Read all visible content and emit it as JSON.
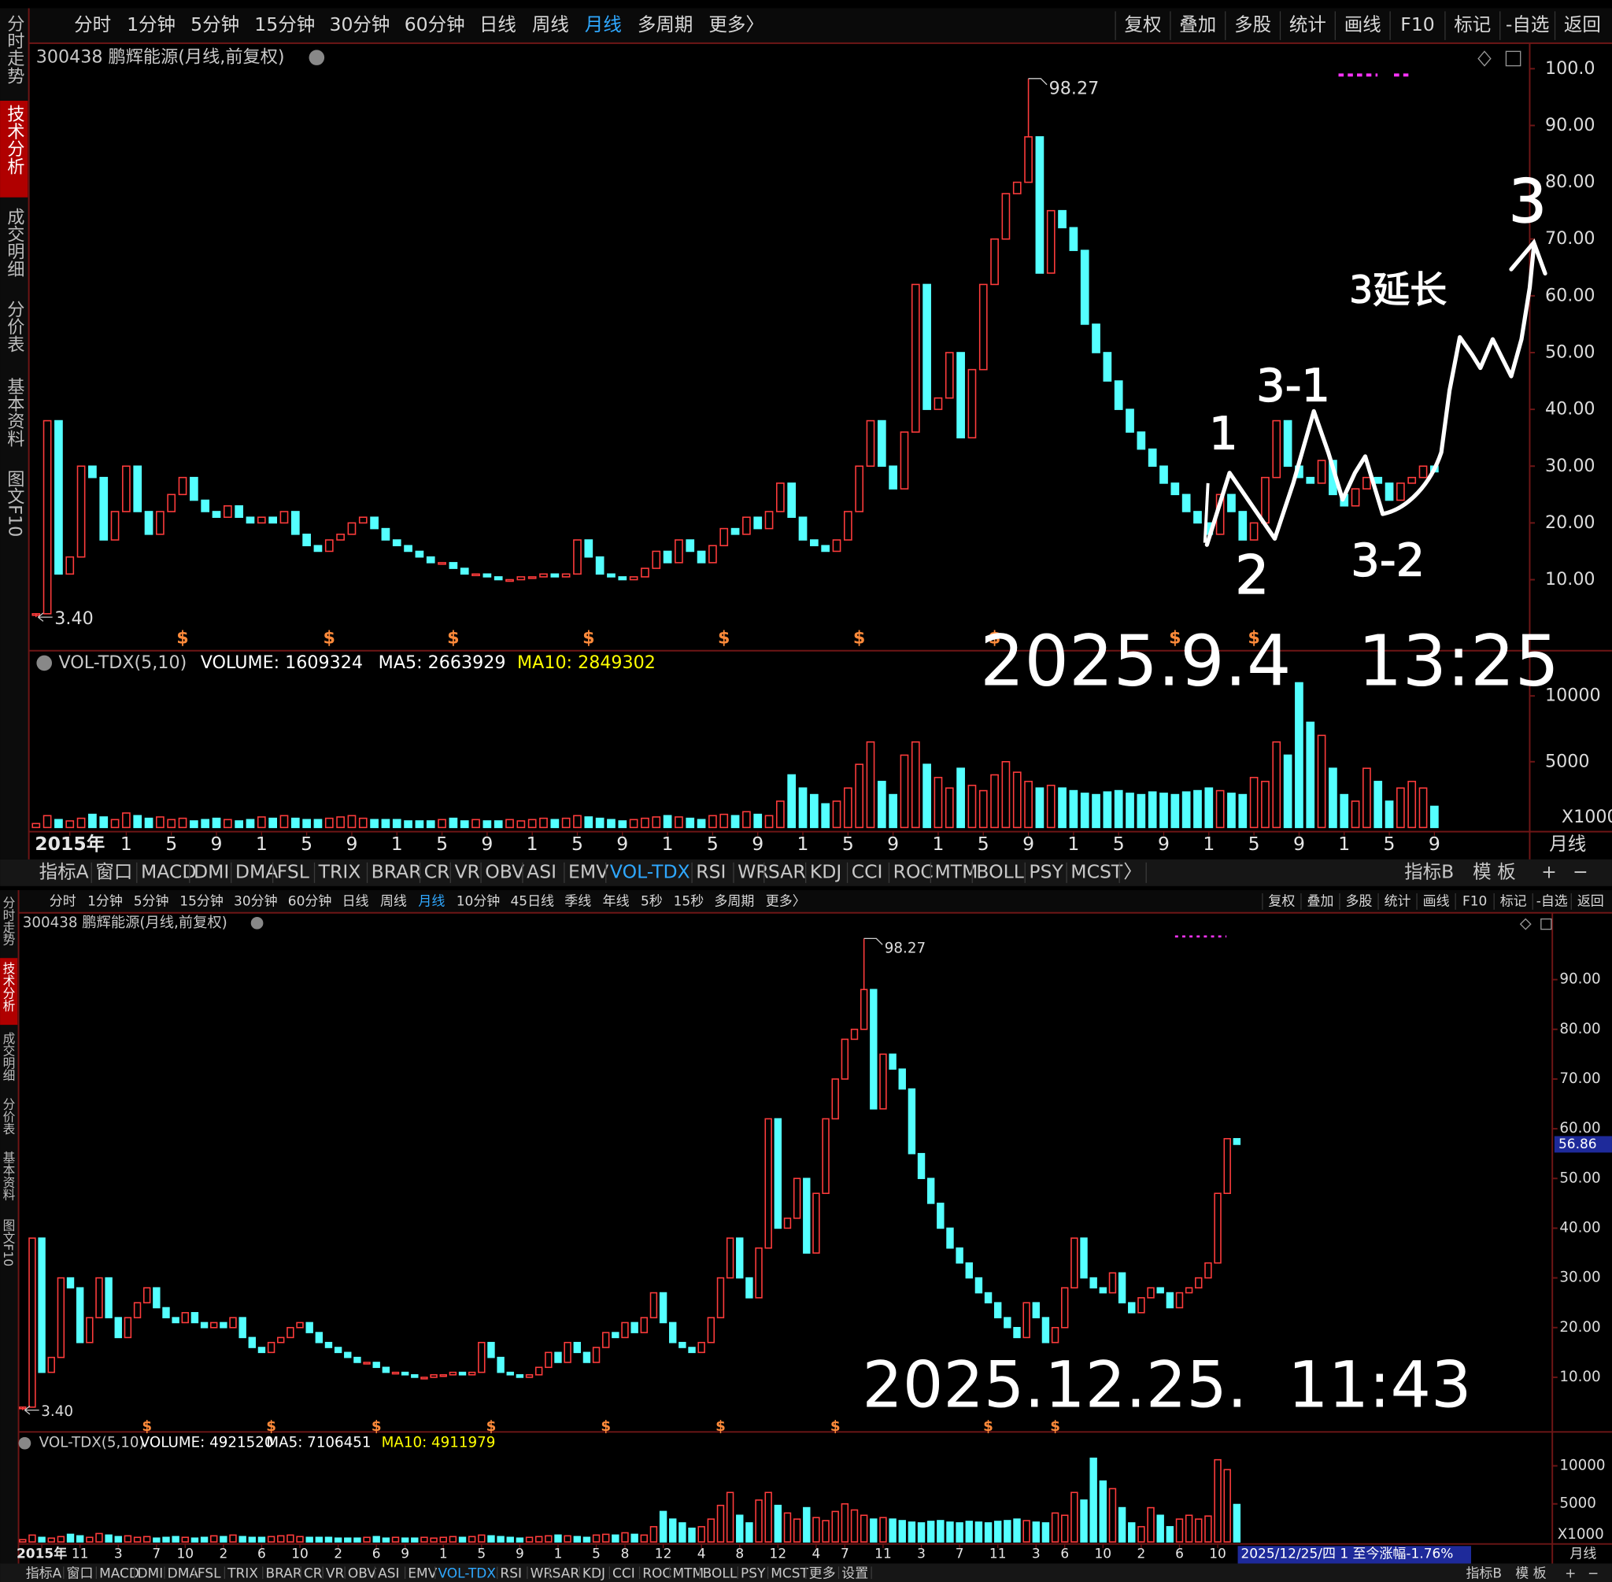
{
  "chart_data": [
    {
      "type": "candlestick",
      "title": "300438 鹏辉能源(月线,前复权)",
      "values": [
        4,
        38,
        11,
        14,
        30,
        28,
        17,
        22,
        30,
        22,
        18,
        22,
        25,
        28,
        24,
        22,
        21,
        23,
        21,
        20,
        21,
        20,
        22,
        18,
        16,
        15,
        17,
        18,
        20,
        21,
        19,
        17,
        16,
        15,
        14,
        13,
        13,
        12,
        11,
        11,
        10.5,
        10,
        10,
        10.5,
        10.5,
        11,
        10.5,
        11,
        17,
        14,
        11,
        10.5,
        10,
        10.5,
        12,
        15,
        13,
        17,
        15,
        13,
        16,
        19,
        18,
        21,
        19,
        22,
        27,
        21,
        17,
        16,
        15,
        17,
        22,
        30,
        38,
        30,
        26,
        36,
        62,
        40,
        42,
        50,
        35,
        47,
        62,
        70,
        78,
        80,
        88,
        64,
        75,
        72,
        68,
        55,
        50,
        45,
        40,
        36,
        33,
        30,
        27,
        25,
        22,
        20,
        18,
        25,
        22,
        17,
        20,
        28,
        38,
        30,
        28,
        27,
        31,
        25,
        23,
        26,
        28,
        27,
        24,
        27,
        28,
        30,
        29
      ],
      "up_color": "#ff3c3c",
      "down_color": "#54ffff",
      "ylim": [
        -1.6,
        104.5
      ],
      "yticks": [
        {
          "value": 10,
          "label": "10.00"
        },
        {
          "value": 20,
          "label": "20.00"
        },
        {
          "value": 30,
          "label": "30.00"
        },
        {
          "value": 40,
          "label": "40.00"
        },
        {
          "value": 50,
          "label": "50.00"
        },
        {
          "value": 60,
          "label": "60.00"
        },
        {
          "value": 70,
          "label": "70.00"
        },
        {
          "value": 80,
          "label": "80.00"
        },
        {
          "value": 90,
          "label": "90.00"
        },
        {
          "value": 100,
          "label": "100.0"
        }
      ],
      "xticks": [
        {
          "value": 3,
          "label": "2015年"
        },
        {
          "value": 8,
          "label": "1"
        },
        {
          "value": 12,
          "label": "5"
        },
        {
          "value": 16,
          "label": "9"
        },
        {
          "value": 20,
          "label": "1"
        },
        {
          "value": 24,
          "label": "5"
        },
        {
          "value": 28,
          "label": "9"
        },
        {
          "value": 32,
          "label": "1"
        },
        {
          "value": 36,
          "label": "5"
        },
        {
          "value": 40,
          "label": "9"
        },
        {
          "value": 44,
          "label": "1"
        },
        {
          "value": 48,
          "label": "5"
        },
        {
          "value": 52,
          "label": "9"
        },
        {
          "value": 56,
          "label": "1"
        },
        {
          "value": 60,
          "label": "5"
        },
        {
          "value": 64,
          "label": "9"
        },
        {
          "value": 68,
          "label": "1"
        },
        {
          "value": 72,
          "label": "5"
        },
        {
          "value": 76,
          "label": "9"
        },
        {
          "value": 80,
          "label": "1"
        },
        {
          "value": 84,
          "label": "5"
        },
        {
          "value": 88,
          "label": "9"
        },
        {
          "value": 92,
          "label": "1"
        },
        {
          "value": 96,
          "label": "5"
        },
        {
          "value": 100,
          "label": "9"
        },
        {
          "value": 104,
          "label": "1"
        },
        {
          "value": 108,
          "label": "5"
        },
        {
          "value": 112,
          "label": "9"
        },
        {
          "value": 116,
          "label": "1"
        },
        {
          "value": 120,
          "label": "5"
        },
        {
          "value": 124,
          "label": "9"
        }
      ],
      "high": 98.27,
      "low": {
        "value": 3.4,
        "label": "3.40"
      },
      "dividend_label": "$",
      "dividends": [
        13,
        26,
        37,
        49,
        61,
        73,
        85,
        101,
        108
      ],
      "volume": {
        "title": "VOL-TDX(5,10)",
        "readouts": [
          "VOLUME: 1609324",
          "MA5: 2663929",
          "MA10: 2849302"
        ],
        "readout_colors": [
          "#ffffff",
          "#ffffff",
          "#ffff00"
        ],
        "values": [
          300,
          900,
          600,
          500,
          700,
          1000,
          800,
          600,
          1100,
          900,
          700,
          800,
          600,
          700,
          500,
          600,
          700,
          600,
          500,
          600,
          800,
          700,
          900,
          700,
          600,
          600,
          700,
          800,
          900,
          700,
          600,
          600,
          600,
          500,
          500,
          500,
          600,
          700,
          500,
          600,
          500,
          500,
          600,
          500,
          600,
          700,
          600,
          700,
          900,
          800,
          700,
          600,
          500,
          600,
          700,
          800,
          900,
          800,
          700,
          600,
          900,
          1000,
          900,
          1200,
          1000,
          900,
          2000,
          4000,
          3000,
          2500,
          1800,
          2000,
          3000,
          4800,
          6500,
          3500,
          2500,
          5500,
          6500,
          4800,
          3800,
          3000,
          4500,
          3200,
          2800,
          4000,
          5000,
          4200,
          3500,
          3000,
          3200,
          3000,
          2800,
          2600,
          2500,
          2700,
          2800,
          2600,
          2500,
          2700,
          2600,
          2500,
          2700,
          2800,
          3000,
          2800,
          2600,
          2500,
          3800,
          3500,
          6500,
          5500,
          11000,
          8000,
          7000,
          4500,
          2500,
          2000,
          4500,
          3500,
          2000,
          3000,
          3500,
          3000,
          1609
        ],
        "ylim": [
          0,
          11719
        ],
        "yticks": [
          5000,
          10000
        ],
        "unit": "X1000"
      },
      "timestamp": "2025.9.4   13:25",
      "annotations": [
        "1",
        "2",
        "3-1",
        "3-2",
        "3延长",
        "3"
      ]
    },
    {
      "type": "candlestick",
      "title": "300438 鹏辉能源(月线,前复权)",
      "values": [
        4,
        38,
        11,
        14,
        30,
        28,
        17,
        22,
        30,
        22,
        18,
        22,
        25,
        28,
        24,
        22,
        21,
        23,
        21,
        20,
        21,
        20,
        22,
        18,
        16,
        15,
        17,
        18,
        20,
        21,
        19,
        17,
        16,
        15,
        14,
        13,
        13,
        12,
        11,
        11,
        10.5,
        10,
        10,
        10.5,
        10.5,
        11,
        10.5,
        11,
        17,
        14,
        11,
        10.5,
        10,
        10.5,
        12,
        15,
        13,
        17,
        15,
        13,
        16,
        19,
        18,
        21,
        19,
        22,
        27,
        21,
        17,
        16,
        15,
        17,
        22,
        30,
        38,
        30,
        26,
        36,
        62,
        40,
        42,
        50,
        35,
        47,
        62,
        70,
        78,
        80,
        88,
        64,
        75,
        72,
        68,
        55,
        50,
        45,
        40,
        36,
        33,
        30,
        27,
        25,
        22,
        20,
        18,
        25,
        22,
        17,
        20,
        28,
        38,
        30,
        28,
        27,
        31,
        25,
        23,
        26,
        28,
        27,
        24,
        27,
        28,
        30,
        33,
        47,
        58,
        56.86
      ],
      "up_color": "#ff3c3c",
      "down_color": "#54ffff",
      "ylim": [
        -1.4,
        99.3
      ],
      "yticks": [
        {
          "value": 10,
          "label": "10.00"
        },
        {
          "value": 20,
          "label": "20.00"
        },
        {
          "value": 30,
          "label": "30.00"
        },
        {
          "value": 40,
          "label": "40.00"
        },
        {
          "value": 50,
          "label": "50.00"
        },
        {
          "value": 60,
          "label": "60.00"
        },
        {
          "value": 70,
          "label": "70.00"
        },
        {
          "value": 80,
          "label": "80.00"
        },
        {
          "value": 90,
          "label": "90.00"
        }
      ],
      "xticks": [
        {
          "value": 2,
          "label": "2015年"
        },
        {
          "value": 6,
          "label": "11"
        },
        {
          "value": 10,
          "label": "3"
        },
        {
          "value": 14,
          "label": "7"
        },
        {
          "value": 17,
          "label": "10"
        },
        {
          "value": 21,
          "label": "2"
        },
        {
          "value": 25,
          "label": "6"
        },
        {
          "value": 29,
          "label": "10"
        },
        {
          "value": 33,
          "label": "2"
        },
        {
          "value": 37,
          "label": "6"
        },
        {
          "value": 40,
          "label": "9"
        },
        {
          "value": 44,
          "label": "1"
        },
        {
          "value": 48,
          "label": "5"
        },
        {
          "value": 52,
          "label": "9"
        },
        {
          "value": 56,
          "label": "1"
        },
        {
          "value": 60,
          "label": "5"
        },
        {
          "value": 63,
          "label": "8"
        },
        {
          "value": 67,
          "label": "12"
        },
        {
          "value": 71,
          "label": "4"
        },
        {
          "value": 75,
          "label": "8"
        },
        {
          "value": 79,
          "label": "12"
        },
        {
          "value": 83,
          "label": "4"
        },
        {
          "value": 86,
          "label": "7"
        },
        {
          "value": 90,
          "label": "11"
        },
        {
          "value": 94,
          "label": "3"
        },
        {
          "value": 98,
          "label": "7"
        },
        {
          "value": 102,
          "label": "11"
        },
        {
          "value": 106,
          "label": "3"
        },
        {
          "value": 109,
          "label": "6"
        },
        {
          "value": 113,
          "label": "10"
        },
        {
          "value": 117,
          "label": "2"
        },
        {
          "value": 121,
          "label": "6"
        },
        {
          "value": 125,
          "label": "10"
        }
      ],
      "high": 98.27,
      "low": {
        "value": 3.4,
        "label": "3.40"
      },
      "last_price": 56.86,
      "dividend_label": "$",
      "dividends": [
        13,
        26,
        37,
        49,
        61,
        73,
        85,
        101,
        108
      ],
      "volume": {
        "title": "VOL-TDX(5,10)",
        "readouts": [
          "VOLUME: 4921520",
          "MA5: 7106451",
          "MA10: 4911979"
        ],
        "readout_colors": [
          "#ffffff",
          "#ffffff",
          "#ffff00"
        ],
        "values": [
          300,
          900,
          600,
          500,
          700,
          1000,
          800,
          600,
          1100,
          900,
          700,
          800,
          600,
          700,
          500,
          600,
          700,
          600,
          500,
          600,
          800,
          700,
          900,
          700,
          600,
          600,
          700,
          800,
          900,
          700,
          600,
          600,
          600,
          500,
          500,
          500,
          600,
          700,
          500,
          600,
          500,
          500,
          600,
          500,
          600,
          700,
          600,
          700,
          900,
          800,
          700,
          600,
          500,
          600,
          700,
          800,
          900,
          800,
          700,
          600,
          900,
          1000,
          900,
          1200,
          1000,
          900,
          2000,
          4000,
          3000,
          2500,
          1800,
          2000,
          3000,
          4800,
          6500,
          3500,
          2500,
          5500,
          6500,
          4800,
          3800,
          3000,
          4500,
          3200,
          2800,
          4000,
          5000,
          4200,
          3500,
          3000,
          3200,
          3000,
          2800,
          2600,
          2500,
          2700,
          2800,
          2600,
          2500,
          2700,
          2600,
          2500,
          2700,
          2800,
          3000,
          2800,
          2600,
          2500,
          3800,
          3500,
          6500,
          5500,
          11000,
          8000,
          7000,
          4500,
          2500,
          2000,
          4500,
          3500,
          2000,
          3000,
          3500,
          3000,
          3400,
          10800,
          9500,
          4922
        ],
        "ylim": [
          0,
          11486
        ],
        "yticks": [
          5000,
          10000
        ],
        "unit": "X1000"
      },
      "timestamp": "2025.12.25.  11:43"
    }
  ],
  "ui": [
    {
      "toolbar": [
        "分时",
        "1分钟",
        "5分钟",
        "15分钟",
        "30分钟",
        "60分钟",
        "日线",
        "周线",
        "月线",
        "多周期",
        "更多〉"
      ],
      "toolbar_active": 8,
      "right_buttons": [
        "复权",
        "叠加",
        "多股",
        "统计",
        "画线",
        "F10",
        "标记",
        "-自选",
        "返回"
      ],
      "sidebar": [
        "分时走势",
        "技术分析",
        "成交明细",
        "分价表",
        "基本资料",
        "图文F10"
      ],
      "sidebar_active": 1,
      "tabs": [
        "指标A",
        "窗口",
        "MACD",
        "DMI",
        "DMA",
        "FSL",
        "TRIX",
        "BRAR",
        "CR",
        "VR",
        "OBV",
        "ASI",
        "EMV",
        "VOL-TDX",
        "RSI",
        "WR",
        "SAR",
        "KDJ",
        "CCI",
        "ROC",
        "MTM",
        "BOLL",
        "PSY",
        "MCST",
        "〉"
      ],
      "tabs_active": 13,
      "tabs_right": [
        "指标B",
        "模 板",
        "+",
        "−"
      ],
      "period": "月线"
    },
    {
      "toolbar": [
        "分时",
        "1分钟",
        "5分钟",
        "15分钟",
        "30分钟",
        "60分钟",
        "日线",
        "周线",
        "月线",
        "10分钟",
        "45日线",
        "季线",
        "年线",
        "5秒",
        "15秒",
        "多周期",
        "更多〉"
      ],
      "toolbar_active": 8,
      "right_buttons": [
        "复权",
        "叠加",
        "多股",
        "统计",
        "画线",
        "F10",
        "标记",
        "-自选",
        "返回"
      ],
      "sidebar": [
        "分时走势",
        "技术分析",
        "成交明细",
        "分价表",
        "基本资料",
        "图文F10"
      ],
      "sidebar_active": 1,
      "tabs": [
        "指标A",
        "窗口",
        "MACD",
        "DMI",
        "DMA",
        "FSL",
        "TRIX",
        "BRAR",
        "CR",
        "VR",
        "OBV",
        "ASI",
        "EMV",
        "VOL-TDX",
        "RSI",
        "WR",
        "SAR",
        "KDJ",
        "CCI",
        "ROC",
        "MTM",
        "BOLL",
        "PSY",
        "MCST",
        "更多",
        "设置"
      ],
      "tabs_active": 13,
      "tabs_right": [
        "指标B",
        "模 板",
        "+",
        "−"
      ],
      "period": "月线",
      "status": "2025/12/25/四 1 至今涨幅-1.76%"
    }
  ]
}
